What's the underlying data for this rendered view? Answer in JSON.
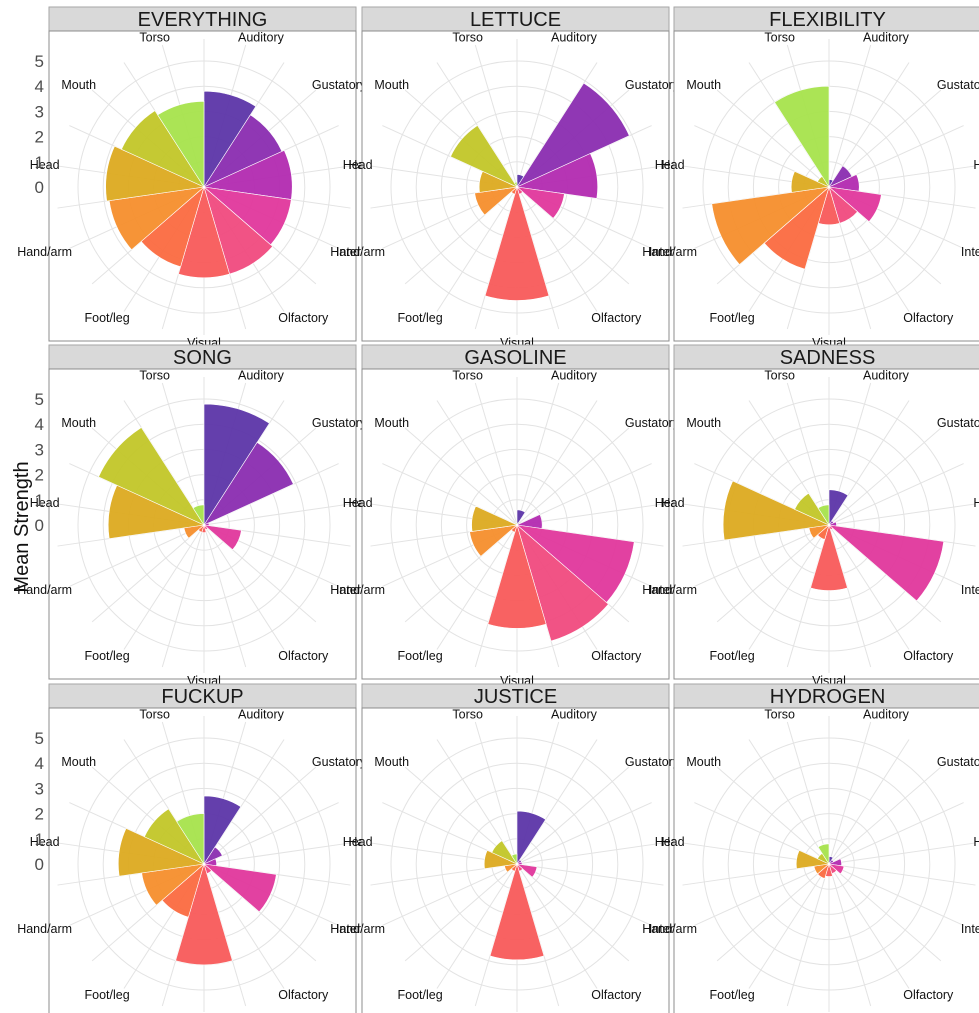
{
  "chart_data": {
    "type": "polar-bar",
    "ylabel": "Mean Strength",
    "y_ticks": [
      "5",
      "4",
      "3",
      "2",
      "1",
      "0"
    ],
    "ylim": [
      0,
      5
    ],
    "inner_offset": 0,
    "dimensions": [
      "Auditory",
      "Gustatory",
      "Haptic",
      "Interoceptive",
      "Olfactory",
      "Visual",
      "Foot/leg",
      "Hand/arm",
      "Head",
      "Mouth",
      "Torso"
    ],
    "colors": [
      "#5c35a8",
      "#8a2cb0",
      "#b22ab0",
      "#e0379c",
      "#f04a7e",
      "#f85a5a",
      "#fb6a40",
      "#f58e2c",
      "#dcaa20",
      "#c2c628",
      "#a6e34c"
    ],
    "grid": true,
    "panels": [
      {
        "title": "EVERYTHING",
        "values": [
          3.8,
          3.4,
          3.5,
          3.5,
          3.6,
          3.6,
          3.3,
          3.8,
          3.9,
          3.6,
          3.4
        ]
      },
      {
        "title": "LETTUCE",
        "values": [
          0.5,
          4.9,
          3.2,
          1.9,
          0.3,
          4.5,
          0.3,
          1.7,
          1.5,
          2.9,
          0.2
        ]
      },
      {
        "title": "FLEXIBILITY",
        "values": [
          0.3,
          1.0,
          1.2,
          2.1,
          1.5,
          1.5,
          3.4,
          4.7,
          1.5,
          0.5,
          4.0
        ]
      },
      {
        "title": "SONG",
        "values": [
          4.8,
          3.9,
          0.2,
          1.5,
          0.2,
          0.3,
          0.3,
          0.8,
          3.8,
          4.6,
          0.8
        ]
      },
      {
        "title": "GASOLINE",
        "values": [
          0.6,
          0.1,
          1.0,
          4.7,
          4.8,
          4.1,
          0.3,
          1.9,
          1.8,
          0.1,
          0.1
        ]
      },
      {
        "title": "SADNESS",
        "values": [
          1.4,
          0.2,
          0.3,
          4.6,
          0.2,
          2.6,
          0.6,
          0.8,
          4.2,
          1.5,
          0.8
        ]
      },
      {
        "title": "FUCKUP",
        "values": [
          2.7,
          0.8,
          0.5,
          2.9,
          0.4,
          4.0,
          2.2,
          2.5,
          3.4,
          2.6,
          2.0
        ]
      },
      {
        "title": "JUSTICE",
        "values": [
          2.1,
          0.2,
          0.2,
          0.8,
          0.3,
          3.8,
          0.3,
          0.5,
          1.3,
          1.1,
          0.4
        ]
      },
      {
        "title": "HYDROGEN",
        "values": [
          0.3,
          0.2,
          0.5,
          0.6,
          0.4,
          0.5,
          0.6,
          0.6,
          1.3,
          0.5,
          0.8
        ]
      }
    ]
  }
}
